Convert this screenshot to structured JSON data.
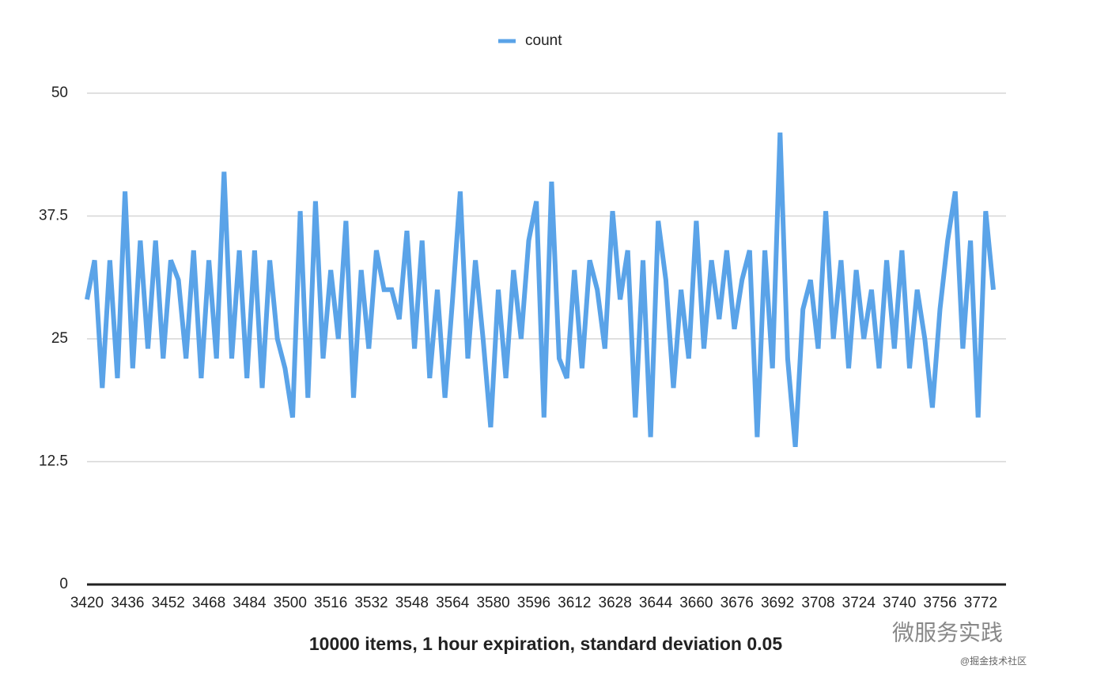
{
  "chart_data": {
    "type": "line",
    "title": "10000 items, 1 hour expiration, standard deviation 0.05",
    "legend": "top",
    "grid": true,
    "xlim": [
      3420,
      3782
    ],
    "ylim": [
      0,
      50
    ],
    "xticks": [
      3420,
      3436,
      3452,
      3468,
      3484,
      3500,
      3516,
      3532,
      3548,
      3564,
      3580,
      3596,
      3612,
      3628,
      3644,
      3660,
      3676,
      3692,
      3708,
      3724,
      3740,
      3756,
      3772
    ],
    "yticks": [
      0,
      12.5,
      25,
      37.5,
      50
    ],
    "x": [
      3420,
      3423,
      3426,
      3429,
      3432,
      3435,
      3438,
      3441,
      3444,
      3447,
      3450,
      3453,
      3456,
      3459,
      3462,
      3465,
      3468,
      3471,
      3474,
      3477,
      3480,
      3483,
      3486,
      3489,
      3492,
      3495,
      3498,
      3501,
      3504,
      3507,
      3510,
      3513,
      3516,
      3519,
      3522,
      3525,
      3528,
      3531,
      3534,
      3537,
      3540,
      3543,
      3546,
      3549,
      3552,
      3555,
      3558,
      3561,
      3564,
      3567,
      3570,
      3573,
      3576,
      3579,
      3582,
      3585,
      3588,
      3591,
      3594,
      3597,
      3600,
      3603,
      3606,
      3609,
      3612,
      3615,
      3618,
      3621,
      3624,
      3627,
      3630,
      3633,
      3636,
      3639,
      3642,
      3645,
      3648,
      3651,
      3654,
      3657,
      3660,
      3663,
      3666,
      3669,
      3672,
      3675,
      3678,
      3681,
      3684,
      3687,
      3690,
      3693,
      3696,
      3699,
      3702,
      3705,
      3708,
      3711,
      3714,
      3717,
      3720,
      3723,
      3726,
      3729,
      3732,
      3735,
      3738,
      3741,
      3744,
      3747,
      3750,
      3753,
      3756,
      3759,
      3762,
      3765,
      3768,
      3771,
      3774,
      3777
    ],
    "series": [
      {
        "name": "count",
        "color": "#5aa3e8",
        "values": [
          29,
          33,
          20,
          33,
          21,
          40,
          22,
          35,
          24,
          35,
          23,
          33,
          31,
          23,
          34,
          21,
          33,
          23,
          42,
          23,
          34,
          21,
          34,
          20,
          33,
          25,
          22,
          17,
          38,
          19,
          39,
          23,
          32,
          25,
          37,
          19,
          32,
          24,
          34,
          30,
          30,
          27,
          36,
          24,
          35,
          21,
          30,
          19,
          29,
          40,
          23,
          33,
          25,
          16,
          30,
          21,
          32,
          25,
          35,
          39,
          17,
          41,
          23,
          21,
          32,
          22,
          33,
          30,
          24,
          38,
          29,
          34,
          17,
          33,
          15,
          37,
          31,
          20,
          30,
          23,
          37,
          24,
          33,
          27,
          34,
          26,
          31,
          34,
          15,
          34,
          22,
          46,
          23,
          14,
          28,
          31,
          24,
          38,
          25,
          33,
          22,
          32,
          25,
          30,
          22,
          33,
          24,
          34,
          22,
          30,
          25,
          18,
          28,
          35,
          40,
          24,
          35,
          17,
          38,
          30
        ]
      }
    ],
    "watermark": "微服务实践",
    "source": "@掘金技术社区"
  }
}
